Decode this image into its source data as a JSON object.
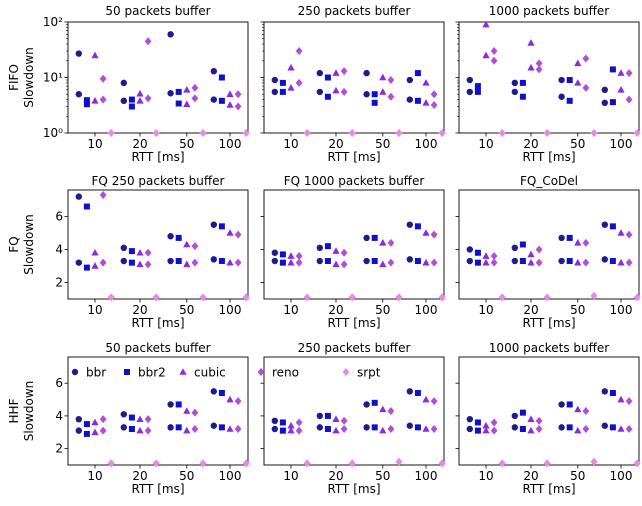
{
  "legend": [
    {
      "name": "bbr",
      "marker": "circle",
      "color": "#1c1c8c"
    },
    {
      "name": "bbr2",
      "marker": "square",
      "color": "#1010cc"
    },
    {
      "name": "cubic",
      "marker": "triangle",
      "color": "#8a2be2"
    },
    {
      "name": "reno",
      "marker": "diamond",
      "color": "#b04fd6"
    },
    {
      "name": "srpt",
      "marker": "diamond",
      "color": "#e58ae8"
    }
  ],
  "chart_data": [
    {
      "type": "scatter",
      "title": "50 packets buffer",
      "row_label": "FIFO",
      "ylabel": "Slowdown",
      "xlabel": "RTT [ms]",
      "categories": [
        "10",
        "20",
        "50",
        "100"
      ],
      "yscale": "log",
      "ylim": [
        1,
        100
      ],
      "yticks": [
        {
          "v": 1,
          "label": "10⁰"
        },
        {
          "v": 10,
          "label": "10¹"
        },
        {
          "v": 100,
          "label": "10²"
        }
      ],
      "series": [
        {
          "name": "bbr",
          "values": [
            [
              27,
              5
            ],
            [
              8,
              3.8
            ],
            [
              60,
              5.2
            ],
            [
              13,
              4
            ]
          ]
        },
        {
          "name": "bbr2",
          "values": [
            [
              3.3,
              3.9
            ],
            [
              4,
              3
            ],
            [
              5.5,
              3.4
            ],
            [
              10,
              3.8
            ]
          ]
        },
        {
          "name": "cubic",
          "values": [
            [
              25,
              3.8
            ],
            [
              3.8,
              5.1
            ],
            [
              6,
              3.3
            ],
            [
              5,
              3.2
            ]
          ]
        },
        {
          "name": "reno",
          "values": [
            [
              9.5,
              4
            ],
            [
              45,
              4.2
            ],
            [
              6.5,
              4.2
            ],
            [
              5,
              3
            ]
          ]
        },
        {
          "name": "srpt",
          "values": [
            [
              1,
              1
            ],
            [
              1,
              1
            ],
            [
              1,
              1
            ],
            [
              1,
              1
            ]
          ]
        }
      ]
    },
    {
      "type": "scatter",
      "title": "250 packets buffer",
      "xlabel": "RTT [ms]",
      "categories": [
        "10",
        "20",
        "50",
        "100"
      ],
      "yscale": "log",
      "ylim": [
        1,
        100
      ],
      "series": [
        {
          "name": "bbr",
          "values": [
            [
              9,
              5.5
            ],
            [
              12,
              5.5
            ],
            [
              12,
              5
            ],
            [
              9,
              4
            ]
          ]
        },
        {
          "name": "bbr2",
          "values": [
            [
              8,
              5.5
            ],
            [
              10,
              4.5
            ],
            [
              5,
              3.5
            ],
            [
              12,
              3.8
            ]
          ]
        },
        {
          "name": "cubic",
          "values": [
            [
              15,
              6.5
            ],
            [
              12,
              5.8
            ],
            [
              10,
              5.5
            ],
            [
              8,
              3.5
            ]
          ]
        },
        {
          "name": "reno",
          "values": [
            [
              30,
              8
            ],
            [
              13,
              5.5
            ],
            [
              9,
              4.5
            ],
            [
              5,
              3.2
            ]
          ]
        },
        {
          "name": "srpt",
          "values": [
            [
              1,
              1
            ],
            [
              1,
              1
            ],
            [
              1,
              1
            ],
            [
              1,
              1
            ]
          ]
        }
      ]
    },
    {
      "type": "scatter",
      "title": "1000 packets buffer",
      "xlabel": "RTT [ms]",
      "categories": [
        "10",
        "20",
        "50",
        "100"
      ],
      "yscale": "log",
      "ylim": [
        1,
        100
      ],
      "series": [
        {
          "name": "bbr",
          "values": [
            [
              9,
              5.5
            ],
            [
              8,
              5.5
            ],
            [
              9,
              4.5
            ],
            [
              6,
              3.5
            ]
          ]
        },
        {
          "name": "bbr2",
          "values": [
            [
              7,
              5.5
            ],
            [
              8,
              4.5
            ],
            [
              9,
              3.8
            ],
            [
              14,
              3.6
            ]
          ]
        },
        {
          "name": "cubic",
          "values": [
            [
              90,
              25
            ],
            [
              42,
              15
            ],
            [
              18,
              8
            ],
            [
              12,
              6
            ]
          ]
        },
        {
          "name": "reno",
          "values": [
            [
              30,
              20
            ],
            [
              18,
              14
            ],
            [
              22,
              6.5
            ],
            [
              12,
              4
            ]
          ]
        },
        {
          "name": "srpt",
          "values": [
            [
              1,
              1
            ],
            [
              1,
              1
            ],
            [
              1,
              1
            ],
            [
              1,
              1
            ]
          ]
        }
      ]
    },
    {
      "type": "scatter",
      "title": "FQ 250 packets buffer",
      "row_label": "FQ",
      "ylabel": "Slowdown",
      "xlabel": "RTT [ms]",
      "categories": [
        "10",
        "20",
        "50",
        "100"
      ],
      "yscale": "linear",
      "ylim": [
        1,
        7.6
      ],
      "yticks": [
        {
          "v": 2,
          "label": "2"
        },
        {
          "v": 4,
          "label": "4"
        },
        {
          "v": 6,
          "label": "6"
        }
      ],
      "series": [
        {
          "name": "bbr",
          "values": [
            [
              7.2,
              3.2
            ],
            [
              4.1,
              3.3
            ],
            [
              4.8,
              3.3
            ],
            [
              5.5,
              3.4
            ]
          ]
        },
        {
          "name": "bbr2",
          "values": [
            [
              6.6,
              2.9
            ],
            [
              3.9,
              3.2
            ],
            [
              4.7,
              3.3
            ],
            [
              5.4,
              3.3
            ]
          ]
        },
        {
          "name": "cubic",
          "values": [
            [
              3.8,
              3
            ],
            [
              3.8,
              3.1
            ],
            [
              4.3,
              3.1
            ],
            [
              5,
              3.2
            ]
          ]
        },
        {
          "name": "reno",
          "values": [
            [
              7.3,
              3.2
            ],
            [
              3.8,
              3.1
            ],
            [
              4.2,
              3.2
            ],
            [
              4.9,
              3.2
            ]
          ]
        },
        {
          "name": "srpt",
          "values": [
            [
              1.1,
              1.1
            ],
            [
              1.1,
              1.1
            ],
            [
              1.1,
              1.1
            ],
            [
              1.1,
              1.1
            ]
          ]
        }
      ]
    },
    {
      "type": "scatter",
      "title": "FQ 1000 packets buffer",
      "xlabel": "RTT [ms]",
      "categories": [
        "10",
        "20",
        "50",
        "100"
      ],
      "yscale": "linear",
      "ylim": [
        1,
        7.6
      ],
      "series": [
        {
          "name": "bbr",
          "values": [
            [
              3.8,
              3.3
            ],
            [
              4.1,
              3.3
            ],
            [
              4.7,
              3.3
            ],
            [
              5.5,
              3.4
            ]
          ]
        },
        {
          "name": "bbr2",
          "values": [
            [
              3.7,
              3.2
            ],
            [
              4.2,
              3.3
            ],
            [
              4.7,
              3.3
            ],
            [
              5.4,
              3.3
            ]
          ]
        },
        {
          "name": "cubic",
          "values": [
            [
              3.6,
              3.2
            ],
            [
              3.9,
              3.1
            ],
            [
              4.4,
              3.1
            ],
            [
              5,
              3.2
            ]
          ]
        },
        {
          "name": "reno",
          "values": [
            [
              3.6,
              3.2
            ],
            [
              3.8,
              3.1
            ],
            [
              4.4,
              3.2
            ],
            [
              4.9,
              3.2
            ]
          ]
        },
        {
          "name": "srpt",
          "values": [
            [
              1.1,
              1.1
            ],
            [
              1.1,
              1.1
            ],
            [
              1.1,
              1.1
            ],
            [
              1.1,
              1.1
            ]
          ]
        }
      ]
    },
    {
      "type": "scatter",
      "title": "FQ_CoDel",
      "xlabel": "RTT [ms]",
      "categories": [
        "10",
        "20",
        "50",
        "100"
      ],
      "yscale": "linear",
      "ylim": [
        1,
        7.6
      ],
      "series": [
        {
          "name": "bbr",
          "values": [
            [
              4,
              3.3
            ],
            [
              4.1,
              3.3
            ],
            [
              4.7,
              3.3
            ],
            [
              5.5,
              3.4
            ]
          ]
        },
        {
          "name": "bbr2",
          "values": [
            [
              3.8,
              3.2
            ],
            [
              4.3,
              3.3
            ],
            [
              4.7,
              3.3
            ],
            [
              5.4,
              3.3
            ]
          ]
        },
        {
          "name": "cubic",
          "values": [
            [
              3.6,
              3.2
            ],
            [
              3.7,
              3.2
            ],
            [
              4.4,
              3.2
            ],
            [
              5,
              3.2
            ]
          ]
        },
        {
          "name": "reno",
          "values": [
            [
              3.6,
              3.2
            ],
            [
              4,
              3.2
            ],
            [
              4.4,
              3.2
            ],
            [
              4.9,
              3.2
            ]
          ]
        },
        {
          "name": "srpt",
          "values": [
            [
              1.1,
              1.1
            ],
            [
              1.1,
              1.1
            ],
            [
              1.2,
              1.2
            ],
            [
              1.1,
              1.1
            ]
          ]
        }
      ]
    },
    {
      "type": "scatter",
      "title": "50 packets buffer",
      "row_label": "HHF",
      "ylabel": "Slowdown",
      "xlabel": "RTT [ms]",
      "categories": [
        "10",
        "20",
        "50",
        "100"
      ],
      "yscale": "linear",
      "ylim": [
        1,
        7.6
      ],
      "yticks": [
        {
          "v": 2,
          "label": "2"
        },
        {
          "v": 4,
          "label": "4"
        },
        {
          "v": 6,
          "label": "6"
        }
      ],
      "series": [
        {
          "name": "bbr",
          "values": [
            [
              3.8,
              3.1
            ],
            [
              4.1,
              3.3
            ],
            [
              4.7,
              3.3
            ],
            [
              5.5,
              3.4
            ]
          ]
        },
        {
          "name": "bbr2",
          "values": [
            [
              3.5,
              2.9
            ],
            [
              3.9,
              3.2
            ],
            [
              4.7,
              3.3
            ],
            [
              5.4,
              3.3
            ]
          ]
        },
        {
          "name": "cubic",
          "values": [
            [
              3.6,
              3
            ],
            [
              3.8,
              3.1
            ],
            [
              4.3,
              3.1
            ],
            [
              5,
              3.2
            ]
          ]
        },
        {
          "name": "reno",
          "values": [
            [
              3.8,
              3.1
            ],
            [
              3.8,
              3.1
            ],
            [
              4.2,
              3.2
            ],
            [
              4.9,
              3.2
            ]
          ]
        },
        {
          "name": "srpt",
          "values": [
            [
              1.1,
              1.1
            ],
            [
              1.1,
              1.1
            ],
            [
              1.1,
              1.1
            ],
            [
              1.1,
              1.1
            ]
          ]
        }
      ]
    },
    {
      "type": "scatter",
      "title": "250 packets buffer",
      "xlabel": "RTT [ms]",
      "categories": [
        "10",
        "20",
        "50",
        "100"
      ],
      "yscale": "linear",
      "ylim": [
        1,
        7.6
      ],
      "series": [
        {
          "name": "bbr",
          "values": [
            [
              3.7,
              3.2
            ],
            [
              4,
              3.3
            ],
            [
              4.7,
              3.3
            ],
            [
              5.5,
              3.4
            ]
          ]
        },
        {
          "name": "bbr2",
          "values": [
            [
              3.6,
              3.1
            ],
            [
              4,
              3.2
            ],
            [
              4.8,
              3.3
            ],
            [
              5.4,
              3.3
            ]
          ]
        },
        {
          "name": "cubic",
          "values": [
            [
              3.4,
              3.1
            ],
            [
              3.8,
              3.1
            ],
            [
              4.4,
              3.1
            ],
            [
              5,
              3.2
            ]
          ]
        },
        {
          "name": "reno",
          "values": [
            [
              3.6,
              3.1
            ],
            [
              3.7,
              3.2
            ],
            [
              4.3,
              3.2
            ],
            [
              4.9,
              3.2
            ]
          ]
        },
        {
          "name": "srpt",
          "values": [
            [
              1.1,
              1.1
            ],
            [
              1.1,
              1.1
            ],
            [
              1.2,
              1.2
            ],
            [
              1.1,
              1.1
            ]
          ]
        }
      ]
    },
    {
      "type": "scatter",
      "title": "1000 packets buffer",
      "xlabel": "RTT [ms]",
      "categories": [
        "10",
        "20",
        "50",
        "100"
      ],
      "yscale": "linear",
      "ylim": [
        1,
        7.6
      ],
      "series": [
        {
          "name": "bbr",
          "values": [
            [
              3.8,
              3.2
            ],
            [
              4,
              3.3
            ],
            [
              4.7,
              3.3
            ],
            [
              5.5,
              3.4
            ]
          ]
        },
        {
          "name": "bbr2",
          "values": [
            [
              3.6,
              3.1
            ],
            [
              4.2,
              3.2
            ],
            [
              4.7,
              3.3
            ],
            [
              5.4,
              3.3
            ]
          ]
        },
        {
          "name": "cubic",
          "values": [
            [
              3.4,
              3.1
            ],
            [
              3.8,
              3.1
            ],
            [
              4.4,
              3.1
            ],
            [
              5,
              3.2
            ]
          ]
        },
        {
          "name": "reno",
          "values": [
            [
              3.6,
              3.1
            ],
            [
              3.7,
              3.2
            ],
            [
              4.3,
              3.2
            ],
            [
              4.9,
              3.2
            ]
          ]
        },
        {
          "name": "srpt",
          "values": [
            [
              1.1,
              1.1
            ],
            [
              1.1,
              1.1
            ],
            [
              1.2,
              1.2
            ],
            [
              1.1,
              1.1
            ]
          ]
        }
      ]
    }
  ]
}
